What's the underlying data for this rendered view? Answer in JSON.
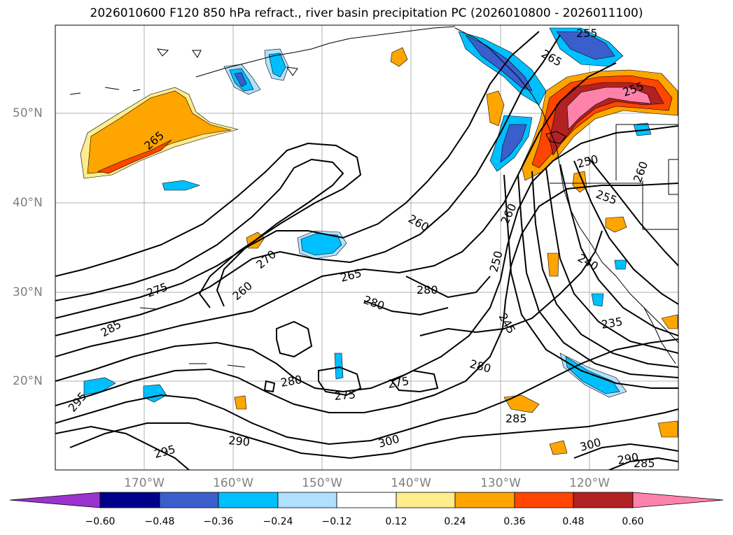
{
  "title": "2026010600 F120 850 hPa refract., river basin precipitation PC (2026010800 - 2026011100)",
  "map": {
    "lat_labels": [
      "50°N",
      "40°N",
      "30°N",
      "20°N"
    ],
    "lon_labels": [
      "170°W",
      "160°W",
      "150°W",
      "140°W",
      "130°W",
      "120°W"
    ],
    "gridlines": true
  },
  "contours": {
    "labels": [
      "255",
      "265",
      "255",
      "265",
      "250",
      "260",
      "255",
      "260",
      "260",
      "270",
      "250",
      "265",
      "275",
      "260",
      "280",
      "280",
      "240",
      "245",
      "285",
      "235",
      "280",
      "295",
      "280",
      "275",
      "275",
      "285",
      "290",
      "300",
      "300",
      "295",
      "290",
      "285"
    ]
  },
  "colorbar": {
    "ticks": [
      "−0.60",
      "−0.48",
      "−0.36",
      "−0.24",
      "−0.12",
      "0.12",
      "0.24",
      "0.36",
      "0.48",
      "0.60"
    ],
    "colors": [
      "#9a32cd",
      "#00008b",
      "#3a5fcd",
      "#00bfff",
      "#afe1ff",
      "#ffffff",
      "#ffec8b",
      "#ffa500",
      "#ff4500",
      "#b22222",
      "#ff82ab"
    ]
  }
}
